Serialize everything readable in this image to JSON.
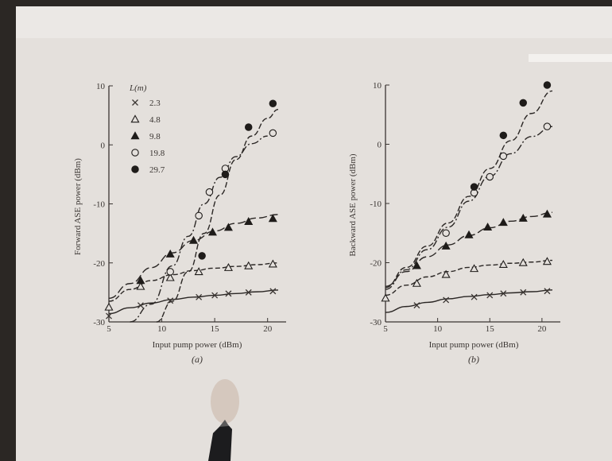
{
  "legend": {
    "title": "L(m)",
    "entries": [
      {
        "label": "2.3",
        "marker": "cross"
      },
      {
        "label": "4.8",
        "marker": "triangle-open"
      },
      {
        "label": "9.8",
        "marker": "triangle-filled"
      },
      {
        "label": "19.8",
        "marker": "circle-open"
      },
      {
        "label": "29.7",
        "marker": "circle-filled"
      }
    ]
  },
  "chart_data": [
    {
      "type": "scatter",
      "panel": "(a)",
      "xlabel": "Input pump power (dBm)",
      "ylabel": "Forward ASE power (dBm)",
      "xlim": [
        5,
        21
      ],
      "ylim": [
        -30,
        10
      ],
      "xticks": [
        5,
        10,
        15,
        20
      ],
      "yticks": [
        -30,
        -20,
        -10,
        0,
        10
      ],
      "series": [
        {
          "name": "2.3",
          "marker": "cross",
          "x": [
            5,
            8,
            10.8,
            13.5,
            15,
            16.3,
            18.2,
            20.5
          ],
          "y": [
            -29,
            -27.2,
            -26.4,
            -25.8,
            -25.5,
            -25.2,
            -25,
            -24.8
          ],
          "curve_x": [
            5,
            7,
            9,
            11,
            13,
            15,
            17,
            19,
            21
          ],
          "curve_y": [
            -28.6,
            -27.6,
            -26.8,
            -26.2,
            -25.8,
            -25.5,
            -25.2,
            -24.9,
            -24.6
          ]
        },
        {
          "name": "4.8",
          "marker": "triangle-open",
          "x": [
            5,
            8,
            10.8,
            13.5,
            16.3,
            18.2,
            20.5
          ],
          "y": [
            -27.5,
            -24,
            -22.5,
            -21.5,
            -20.8,
            -20.5,
            -20.2
          ],
          "curve_x": [
            5,
            7,
            9,
            11,
            13,
            15,
            17,
            19,
            21
          ],
          "curve_y": [
            -26.5,
            -24.5,
            -23,
            -22,
            -21.3,
            -20.9,
            -20.6,
            -20.3,
            -20
          ]
        },
        {
          "name": "9.8",
          "marker": "triangle-filled",
          "x": [
            8,
            10.8,
            13,
            14.8,
            16.3,
            18.2,
            20.5
          ],
          "y": [
            -23,
            -18.5,
            -16.2,
            -14.8,
            -14,
            -13,
            -12.5
          ],
          "curve_x": [
            5,
            7,
            9,
            11,
            13,
            15,
            17,
            19,
            21
          ],
          "curve_y": [
            -26,
            -23.5,
            -20.8,
            -18.3,
            -16.2,
            -14.6,
            -13.3,
            -12.4,
            -11.8
          ]
        },
        {
          "name": "19.8",
          "marker": "circle-open",
          "x": [
            10.8,
            13.5,
            14.5,
            16,
            20.5
          ],
          "y": [
            -21.5,
            -12,
            -8,
            -4,
            2
          ],
          "curve_x": [
            7,
            9,
            11,
            12.5,
            14,
            15.5,
            17,
            18.5,
            20
          ],
          "curve_y": [
            -30,
            -27,
            -20.5,
            -15.5,
            -10,
            -5.5,
            -2,
            0.2,
            1.5
          ]
        },
        {
          "name": "29.7",
          "marker": "circle-filled",
          "x": [
            13.8,
            16,
            18.2,
            20.5
          ],
          "y": [
            -18.8,
            -5,
            3,
            7
          ],
          "curve_x": [
            9.5,
            11,
            12.5,
            14,
            15.5,
            17,
            18.5,
            20,
            21
          ],
          "curve_y": [
            -30,
            -26.5,
            -21.5,
            -15,
            -8.5,
            -2.5,
            1.5,
            4.5,
            6
          ]
        }
      ]
    },
    {
      "type": "scatter",
      "panel": "(b)",
      "xlabel": "Input pump power (dBm)",
      "ylabel": "Backward ASE power (dBm)",
      "xlim": [
        5,
        21
      ],
      "ylim": [
        -30,
        10
      ],
      "xticks": [
        5,
        10,
        15,
        20
      ],
      "yticks": [
        -30,
        -20,
        -10,
        0,
        10
      ],
      "series": [
        {
          "name": "2.3",
          "marker": "cross",
          "x": [
            8,
            10.8,
            13.5,
            15,
            16.3,
            18.2,
            20.5
          ],
          "y": [
            -27.2,
            -26.3,
            -25.8,
            -25.5,
            -25.2,
            -25,
            -24.8
          ],
          "curve_x": [
            5,
            7,
            9,
            11,
            13,
            15,
            17,
            19,
            21
          ],
          "curve_y": [
            -28.4,
            -27.4,
            -26.7,
            -26.1,
            -25.7,
            -25.4,
            -25.1,
            -24.9,
            -24.6
          ]
        },
        {
          "name": "4.8",
          "marker": "triangle-open",
          "x": [
            5,
            8,
            10.8,
            13.5,
            16.3,
            18.2,
            20.5
          ],
          "y": [
            -26,
            -23.5,
            -22,
            -21,
            -20.3,
            -20,
            -19.8
          ],
          "curve_x": [
            5,
            7,
            9,
            11,
            13,
            15,
            17,
            19,
            21
          ],
          "curve_y": [
            -25.5,
            -23.8,
            -22.4,
            -21.5,
            -20.8,
            -20.4,
            -20.1,
            -19.9,
            -19.6
          ]
        },
        {
          "name": "9.8",
          "marker": "triangle-filled",
          "x": [
            8,
            10.8,
            13,
            14.8,
            16.3,
            18.2,
            20.5
          ],
          "y": [
            -20.5,
            -17.2,
            -15.3,
            -14,
            -13.2,
            -12.5,
            -11.8
          ],
          "curve_x": [
            5,
            7,
            9,
            11,
            13,
            15,
            17,
            19,
            21
          ],
          "curve_y": [
            -24,
            -21.5,
            -19,
            -17,
            -15.4,
            -14.1,
            -13,
            -12.2,
            -11.5
          ]
        },
        {
          "name": "19.8",
          "marker": "circle-open",
          "x": [
            10.8,
            13.5,
            15,
            16.3,
            20.5
          ],
          "y": [
            -15,
            -8.2,
            -5.5,
            -2,
            3
          ],
          "curve_x": [
            5,
            7,
            9,
            11,
            13,
            15,
            17,
            19,
            21
          ],
          "curve_y": [
            -24.5,
            -21.2,
            -17.8,
            -14,
            -9.6,
            -5.4,
            -1.6,
            1.3,
            3
          ]
        },
        {
          "name": "29.7",
          "marker": "circle-filled",
          "x": [
            13.5,
            16.3,
            18.2,
            20.5
          ],
          "y": [
            -7.2,
            1.5,
            7,
            10
          ],
          "curve_x": [
            5,
            7,
            9,
            11,
            13,
            15,
            17,
            19,
            21
          ],
          "curve_y": [
            -24.2,
            -20.8,
            -17.2,
            -13.3,
            -8.8,
            -4.1,
            0.6,
            5.2,
            9
          ]
        }
      ]
    }
  ]
}
